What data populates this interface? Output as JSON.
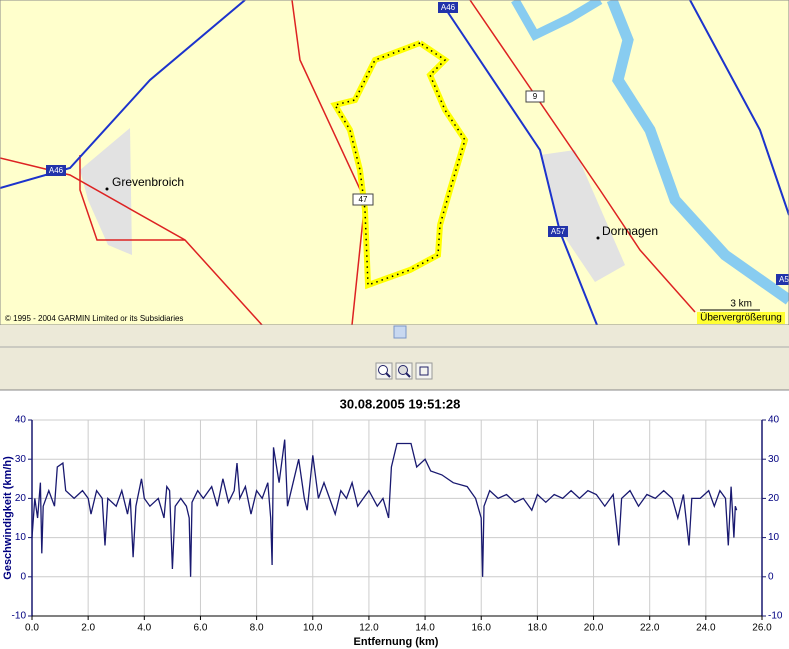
{
  "map": {
    "places": [
      "Grevenbroich",
      "Dormagen"
    ],
    "road_labels": [
      "A46",
      "A46",
      "A57",
      "9",
      "47",
      "A5"
    ],
    "scale": "3 km",
    "zoom_warning": "Übervergrößerung",
    "copyright": "© 1995 - 2004 GARMIN Limited or its Subsidiaries"
  },
  "chart_data": {
    "type": "line",
    "title": "30.08.2005 19:51:28",
    "x_label": "Entfernung (km)",
    "y_label": "Geschwindigkeit (km/h)",
    "color": "#191970",
    "grid": true,
    "x": [
      0.0,
      0.1,
      0.2,
      0.3,
      0.35,
      0.4,
      0.6,
      0.8,
      0.9,
      1.1,
      1.2,
      1.5,
      1.8,
      2.0,
      2.1,
      2.3,
      2.5,
      2.6,
      2.7,
      3.0,
      3.2,
      3.4,
      3.5,
      3.6,
      3.7,
      3.9,
      4.0,
      4.2,
      4.5,
      4.7,
      4.8,
      4.9,
      5.0,
      5.1,
      5.3,
      5.5,
      5.6,
      5.65,
      5.7,
      5.9,
      6.1,
      6.4,
      6.6,
      6.8,
      7.0,
      7.2,
      7.3,
      7.4,
      7.6,
      7.8,
      8.0,
      8.2,
      8.4,
      8.5,
      8.55,
      8.6,
      8.8,
      9.0,
      9.1,
      9.3,
      9.5,
      9.7,
      9.8,
      10.0,
      10.2,
      10.4,
      10.6,
      10.8,
      11.0,
      11.2,
      11.4,
      11.6,
      11.8,
      12.0,
      12.3,
      12.5,
      12.7,
      12.8,
      13.0,
      13.5,
      13.7,
      14.0,
      14.2,
      14.6,
      15.0,
      15.5,
      15.8,
      16.0,
      16.05,
      16.1,
      16.3,
      16.6,
      16.9,
      17.2,
      17.5,
      17.8,
      18.0,
      18.3,
      18.6,
      18.9,
      19.2,
      19.5,
      19.8,
      20.1,
      20.4,
      20.7,
      20.9,
      21.0,
      21.3,
      21.6,
      21.9,
      22.2,
      22.5,
      22.8,
      23.0,
      23.2,
      23.4,
      23.5,
      23.8,
      24.1,
      24.3,
      24.5,
      24.7,
      24.8,
      24.9,
      25.0,
      25.05,
      25.1
    ],
    "values": [
      10,
      20,
      15,
      24,
      6,
      18,
      22,
      18,
      28,
      29,
      22,
      20,
      22,
      20,
      16,
      22,
      20,
      8,
      20,
      18,
      22,
      16,
      20,
      5,
      18,
      25,
      20,
      18,
      20,
      15,
      23,
      22,
      2,
      18,
      20,
      18,
      15,
      0,
      19,
      22,
      20,
      23,
      18,
      25,
      19,
      22,
      29,
      20,
      23,
      16,
      22,
      20,
      24,
      15,
      3,
      33,
      24,
      35,
      18,
      24,
      30,
      20,
      17,
      31,
      20,
      24,
      20,
      16,
      22,
      20,
      24,
      18,
      20,
      22,
      18,
      20,
      15,
      28,
      34,
      34,
      28,
      30,
      27,
      26,
      24,
      23,
      20,
      15,
      0,
      18,
      22,
      20,
      21,
      19,
      20,
      17,
      21,
      19,
      21,
      20,
      22,
      20,
      22,
      21,
      18,
      21,
      8,
      20,
      22,
      18,
      21,
      20,
      22,
      20,
      15,
      21,
      8,
      20,
      20,
      22,
      18,
      22,
      20,
      8,
      23,
      10,
      18,
      17
    ],
    "xlim": [
      0,
      26
    ],
    "xticks": [
      {
        "value": 0,
        "label": "0.0"
      },
      {
        "value": 2,
        "label": "2.0"
      },
      {
        "value": 4,
        "label": "4.0"
      },
      {
        "value": 6,
        "label": "6.0"
      },
      {
        "value": 8,
        "label": "8.0"
      },
      {
        "value": 10,
        "label": "10.0"
      },
      {
        "value": 12,
        "label": "12.0"
      },
      {
        "value": 14,
        "label": "14.0"
      },
      {
        "value": 16,
        "label": "16.0"
      },
      {
        "value": 18,
        "label": "18.0"
      },
      {
        "value": 20,
        "label": "20.0"
      },
      {
        "value": 22,
        "label": "22.0"
      },
      {
        "value": 24,
        "label": "24.0"
      },
      {
        "value": 26,
        "label": "26.0"
      }
    ],
    "ylim": [
      -10,
      40
    ],
    "yticks": [
      -10,
      0,
      10,
      20,
      30,
      40
    ],
    "y2lim": [
      -10,
      40
    ],
    "y2ticks": [
      -10,
      0,
      10,
      20,
      30,
      40
    ]
  }
}
